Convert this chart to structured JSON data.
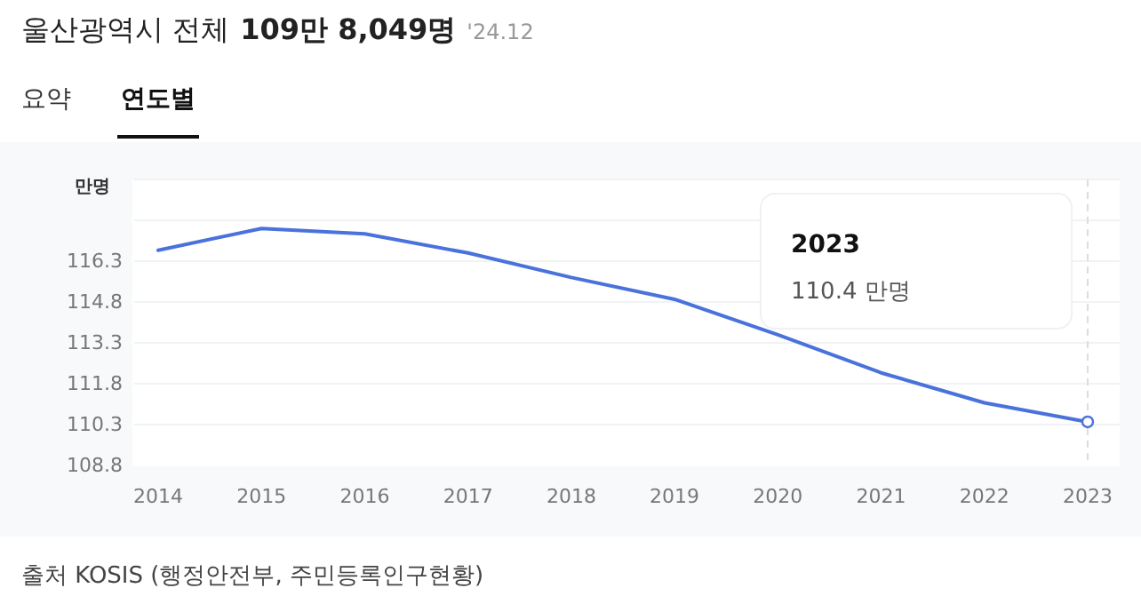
{
  "chart_data": {
    "type": "line",
    "title": "울산광역시 전체",
    "subtitle": "109만 8,049명",
    "ylabel": "만명",
    "categories": [
      "2014",
      "2015",
      "2016",
      "2017",
      "2018",
      "2019",
      "2020",
      "2021",
      "2022",
      "2023"
    ],
    "series": [
      {
        "color": "#4a72dc",
        "values": [
          116.7,
          117.5,
          117.3,
          116.6,
          115.7,
          114.9,
          113.6,
          112.2,
          111.1,
          110.4
        ]
      }
    ],
    "ylim": [
      108.8,
      119.3
    ],
    "yticks": [
      108.8,
      110.3,
      111.8,
      113.3,
      114.8,
      116.3,
      {
        "value": 117.8,
        "label": null
      },
      {
        "value": 119.3,
        "label": null
      }
    ],
    "grid": "y",
    "marker": "none",
    "line_style": "solid",
    "ref_lines": [
      {
        "axis": "x",
        "value": "2023",
        "color": "#dddddd",
        "line_style": "dashed"
      }
    ],
    "annotations": [
      "'24.12",
      "요약",
      "연도별",
      "2023",
      "110.4 만명",
      "출처 KOSIS (행정안전부, 주민등록인구현황)"
    ]
  }
}
